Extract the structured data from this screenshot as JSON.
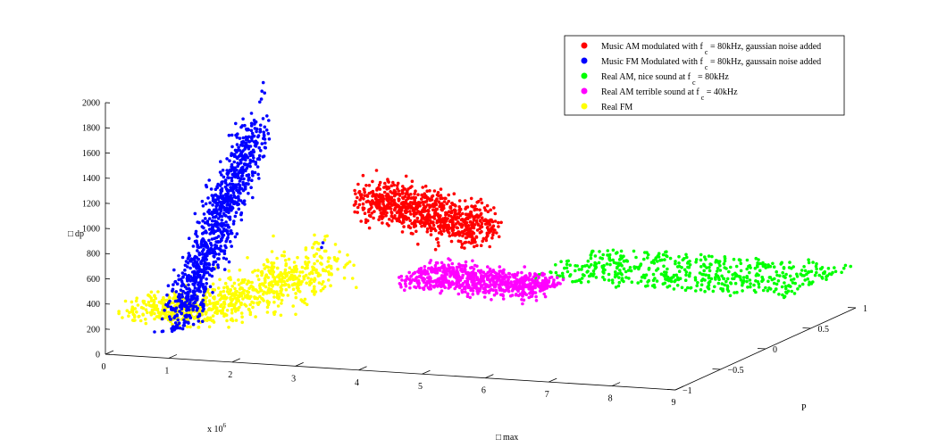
{
  "chart_data": {
    "type": "scatter",
    "projection": "3d",
    "zlabel": "□ dp",
    "xlabel": "□ max",
    "ylabel": "P",
    "x_multiplier": "x 10",
    "x_multiplier_exp": "6",
    "xlim": [
      0,
      9
    ],
    "ylim": [
      -1,
      1
    ],
    "zlim": [
      0,
      2000
    ],
    "x_ticks": [
      "0",
      "1",
      "2",
      "3",
      "4",
      "5",
      "6",
      "7",
      "8",
      "9"
    ],
    "y_ticks": [
      "−1",
      "−0.5",
      "0",
      "0.5",
      "1"
    ],
    "z_ticks": [
      "0",
      "200",
      "400",
      "600",
      "800",
      "1000",
      "1200",
      "1400",
      "1600",
      "1800",
      "2000"
    ],
    "legend_position": "top-right",
    "series": [
      {
        "name": "Music AM modulated with f",
        "sub": "c",
        "suffix": " = 80kHz, gaussian noise added",
        "color": "#ff0000"
      },
      {
        "name": "Music FM Modulated with f",
        "sub": "c",
        "suffix": " = 80kHz, gaussain noise added",
        "color": "#0000ff"
      },
      {
        "name": "Real AM, nice sound at f",
        "sub": "c",
        "suffix": " = 80kHz",
        "color": "#00ff00"
      },
      {
        "name": "Real AM terrible sound at f",
        "sub": "c",
        "suffix": " = 40kHz",
        "color": "#ff00ff"
      },
      {
        "name": "Real FM",
        "sub": "",
        "suffix": "",
        "color": "#ffff00"
      }
    ]
  }
}
